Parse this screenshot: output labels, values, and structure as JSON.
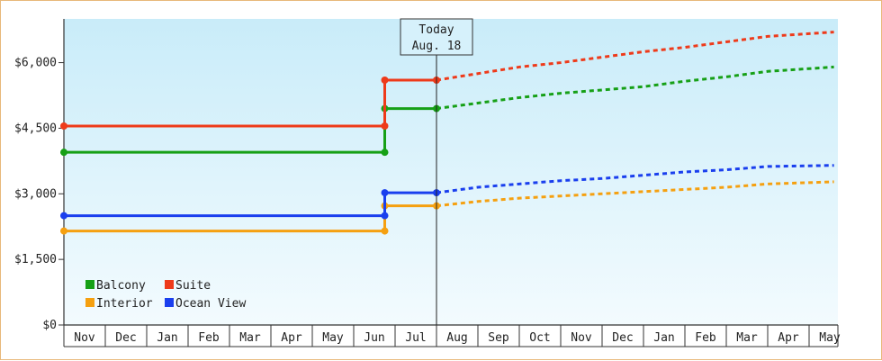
{
  "chart_data": {
    "type": "line",
    "step": true,
    "x_months": [
      "Nov",
      "Dec",
      "Jan",
      "Feb",
      "Mar",
      "Apr",
      "May",
      "Jun",
      "Jul",
      "Aug",
      "Sep",
      "Oct",
      "Nov",
      "Dec",
      "Jan",
      "Feb",
      "Mar",
      "Apr",
      "May"
    ],
    "y_ticks": [
      "$0",
      "$1,500",
      "$3,000",
      "$4,500",
      "$6,000"
    ],
    "y_tick_values": [
      0,
      1500,
      3000,
      4500,
      6000
    ],
    "ylim": [
      0,
      7000
    ],
    "today": {
      "line1": "Today",
      "line2": "Aug. 18",
      "x": 9.0
    },
    "series": [
      {
        "name": "Balcony",
        "color": "#16a016",
        "points": [
          [
            0,
            3950
          ],
          [
            7.75,
            3950
          ],
          [
            7.75,
            4950
          ],
          [
            9.0,
            4950
          ]
        ],
        "forecast": [
          [
            9.0,
            4950
          ],
          [
            10,
            5075
          ],
          [
            11,
            5200
          ],
          [
            12,
            5300
          ],
          [
            13,
            5375
          ],
          [
            14,
            5450
          ],
          [
            15,
            5575
          ],
          [
            16,
            5675
          ],
          [
            17,
            5800
          ],
          [
            18.6,
            5900
          ]
        ]
      },
      {
        "name": "Suite",
        "color": "#ee3a1a",
        "points": [
          [
            0,
            4550
          ],
          [
            7.75,
            4550
          ],
          [
            7.75,
            5600
          ],
          [
            9.0,
            5600
          ]
        ],
        "forecast": [
          [
            9.0,
            5600
          ],
          [
            10,
            5750
          ],
          [
            11,
            5900
          ],
          [
            12,
            6000
          ],
          [
            13,
            6125
          ],
          [
            14,
            6250
          ],
          [
            15,
            6350
          ],
          [
            16,
            6475
          ],
          [
            17,
            6600
          ],
          [
            18.6,
            6700
          ]
        ]
      },
      {
        "name": "Interior",
        "color": "#f5a010",
        "points": [
          [
            0,
            2150
          ],
          [
            7.75,
            2150
          ],
          [
            7.75,
            2725
          ],
          [
            9.0,
            2725
          ]
        ],
        "forecast": [
          [
            9.0,
            2725
          ],
          [
            10,
            2825
          ],
          [
            11,
            2900
          ],
          [
            12,
            2950
          ],
          [
            13,
            3000
          ],
          [
            14,
            3050
          ],
          [
            15,
            3100
          ],
          [
            16,
            3150
          ],
          [
            17,
            3225
          ],
          [
            18.6,
            3275
          ]
        ]
      },
      {
        "name": "Ocean View",
        "color": "#1a3fee",
        "points": [
          [
            0,
            2500
          ],
          [
            7.75,
            2500
          ],
          [
            7.75,
            3025
          ],
          [
            9.0,
            3025
          ]
        ],
        "forecast": [
          [
            9.0,
            3025
          ],
          [
            10,
            3150
          ],
          [
            11,
            3225
          ],
          [
            12,
            3300
          ],
          [
            13,
            3350
          ],
          [
            14,
            3425
          ],
          [
            15,
            3500
          ],
          [
            16,
            3550
          ],
          [
            17,
            3625
          ],
          [
            18.6,
            3650
          ]
        ]
      }
    ],
    "legend_placement": "bottom-left",
    "grid": false
  }
}
